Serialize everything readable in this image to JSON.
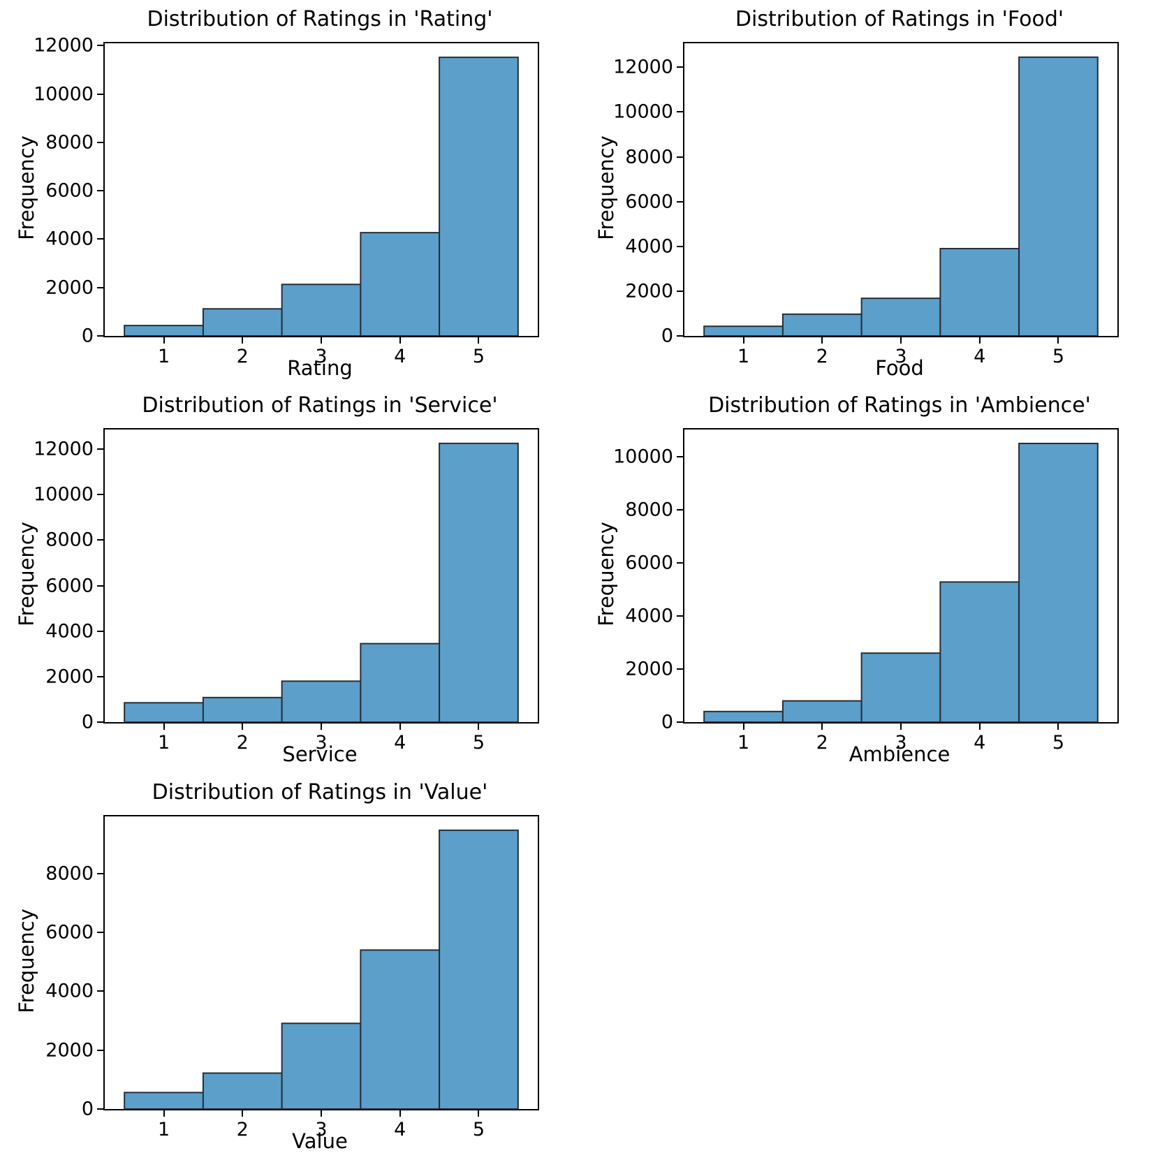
{
  "style": {
    "background": "#ffffff",
    "bar_fill": "#5C9FCB",
    "bar_edge": "#232f38",
    "axis_color": "#000000",
    "text_color": "#000000"
  },
  "chart_data": [
    {
      "type": "bar",
      "title": "Distribution of Ratings in 'Rating'",
      "xlabel": "Rating",
      "ylabel": "Frequency",
      "categories": [
        1,
        2,
        3,
        4,
        5
      ],
      "values": [
        430,
        1120,
        2130,
        4270,
        11520
      ],
      "yticks": [
        0,
        2000,
        4000,
        6000,
        8000,
        10000,
        12000
      ],
      "xticks": [
        1,
        2,
        3,
        4,
        5
      ],
      "ylim": [
        0,
        12100
      ],
      "xlim": [
        0.25,
        5.75
      ],
      "bar_width": 1,
      "grid": "off",
      "legend": "none"
    },
    {
      "type": "bar",
      "title": "Distribution of Ratings in 'Food'",
      "xlabel": "Food",
      "ylabel": "Frequency",
      "categories": [
        1,
        2,
        3,
        4,
        5
      ],
      "values": [
        430,
        970,
        1680,
        3900,
        12450
      ],
      "yticks": [
        0,
        2000,
        4000,
        6000,
        8000,
        10000,
        12000
      ],
      "xticks": [
        1,
        2,
        3,
        4,
        5
      ],
      "ylim": [
        0,
        13070
      ],
      "xlim": [
        0.25,
        5.75
      ],
      "bar_width": 1,
      "grid": "off",
      "legend": "none"
    },
    {
      "type": "bar",
      "title": "Distribution of Ratings in 'Service'",
      "xlabel": "Service",
      "ylabel": "Frequency",
      "categories": [
        1,
        2,
        3,
        4,
        5
      ],
      "values": [
        850,
        1080,
        1800,
        3450,
        12250
      ],
      "yticks": [
        0,
        2000,
        4000,
        6000,
        8000,
        10000,
        12000
      ],
      "xticks": [
        1,
        2,
        3,
        4,
        5
      ],
      "ylim": [
        0,
        12860
      ],
      "xlim": [
        0.25,
        5.75
      ],
      "bar_width": 1,
      "grid": "off",
      "legend": "none"
    },
    {
      "type": "bar",
      "title": "Distribution of Ratings in 'Ambience'",
      "xlabel": "Ambience",
      "ylabel": "Frequency",
      "categories": [
        1,
        2,
        3,
        4,
        5
      ],
      "values": [
        400,
        800,
        2600,
        5280,
        10500
      ],
      "yticks": [
        0,
        2000,
        4000,
        6000,
        8000,
        10000
      ],
      "xticks": [
        1,
        2,
        3,
        4,
        5
      ],
      "ylim": [
        0,
        11025
      ],
      "xlim": [
        0.25,
        5.75
      ],
      "bar_width": 1,
      "grid": "off",
      "legend": "none"
    },
    {
      "type": "bar",
      "title": "Distribution of Ratings in 'Value'",
      "xlabel": "Value",
      "ylabel": "Frequency",
      "categories": [
        1,
        2,
        3,
        4,
        5
      ],
      "values": [
        560,
        1220,
        2910,
        5400,
        9470
      ],
      "yticks": [
        0,
        2000,
        4000,
        6000,
        8000
      ],
      "xticks": [
        1,
        2,
        3,
        4,
        5
      ],
      "ylim": [
        0,
        9940
      ],
      "xlim": [
        0.25,
        5.75
      ],
      "bar_width": 1,
      "grid": "off",
      "legend": "none"
    }
  ]
}
